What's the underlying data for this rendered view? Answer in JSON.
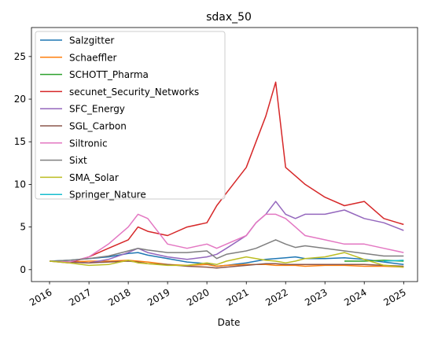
{
  "chart_data": {
    "type": "line",
    "title": "sdax_50",
    "xlabel": "Date",
    "ylabel": "",
    "x": [
      "2016-01-01",
      "2016-07-01",
      "2017-01-01",
      "2017-07-01",
      "2018-01-01",
      "2018-04-01",
      "2018-07-01",
      "2019-01-01",
      "2019-07-01",
      "2020-01-01",
      "2020-04-01",
      "2020-07-01",
      "2021-01-01",
      "2021-04-01",
      "2021-07-01",
      "2021-10-01",
      "2022-01-01",
      "2022-04-01",
      "2022-07-01",
      "2023-01-01",
      "2023-07-01",
      "2024-01-01",
      "2024-07-01",
      "2025-01-01"
    ],
    "xlim": [
      "2015-07-17",
      "2025-05-10"
    ],
    "ylim": [
      -1.4,
      28.4
    ],
    "x_ticks": [
      "2016",
      "2017",
      "2018",
      "2019",
      "2020",
      "2021",
      "2022",
      "2023",
      "2024",
      "2025"
    ],
    "y_ticks": [
      0,
      5,
      10,
      15,
      20,
      25
    ],
    "grid": false,
    "legend_position": "top-left",
    "series": [
      {
        "name": "Salzgitter",
        "color": "#1f77b4",
        "values": [
          1.0,
          1.1,
          1.3,
          1.5,
          1.9,
          2.0,
          1.7,
          1.3,
          0.9,
          0.7,
          0.4,
          0.5,
          0.8,
          1.0,
          1.2,
          1.3,
          1.4,
          1.5,
          1.3,
          1.3,
          1.4,
          1.2,
          0.9,
          0.6
        ]
      },
      {
        "name": "Schaeffler",
        "color": "#ff7f0e",
        "values": [
          1.0,
          0.9,
          1.0,
          1.0,
          1.1,
          1.0,
          0.9,
          0.6,
          0.5,
          0.6,
          0.4,
          0.5,
          0.6,
          0.6,
          0.6,
          0.5,
          0.5,
          0.5,
          0.4,
          0.5,
          0.5,
          0.4,
          0.4,
          0.3
        ]
      },
      {
        "name": "SCHOTT_Pharma",
        "color": "#2ca02c",
        "values": [
          null,
          null,
          null,
          null,
          null,
          null,
          null,
          null,
          null,
          null,
          null,
          null,
          null,
          null,
          null,
          null,
          null,
          null,
          null,
          null,
          1.0,
          1.0,
          1.1,
          1.0
        ]
      },
      {
        "name": "secunet_Security_Networks",
        "color": "#d62728",
        "values": [
          1.0,
          0.8,
          1.5,
          2.5,
          3.5,
          5.0,
          4.5,
          4.0,
          5.0,
          5.5,
          7.5,
          9.0,
          12.0,
          15.0,
          18.0,
          22.0,
          12.0,
          11.0,
          10.0,
          8.5,
          7.5,
          8.0,
          6.0,
          5.3
        ]
      },
      {
        "name": "SFC_Energy",
        "color": "#9467bd",
        "values": [
          1.0,
          0.9,
          0.8,
          1.2,
          2.0,
          2.5,
          2.0,
          1.5,
          1.2,
          1.5,
          1.8,
          2.5,
          4.0,
          5.5,
          6.5,
          8.0,
          6.5,
          6.0,
          6.5,
          6.5,
          7.0,
          6.0,
          5.5,
          4.6
        ]
      },
      {
        "name": "SGL_Carbon",
        "color": "#8c564b",
        "values": [
          1.0,
          0.9,
          0.8,
          0.9,
          1.0,
          0.9,
          0.7,
          0.6,
          0.4,
          0.3,
          0.2,
          0.3,
          0.5,
          0.6,
          0.7,
          0.7,
          0.6,
          0.6,
          0.6,
          0.6,
          0.6,
          0.6,
          0.5,
          0.4
        ]
      },
      {
        "name": "Siltronic",
        "color": "#e377c2",
        "values": [
          1.0,
          0.9,
          1.5,
          3.0,
          5.0,
          6.5,
          6.0,
          3.0,
          2.5,
          3.0,
          2.5,
          3.0,
          4.0,
          5.5,
          6.5,
          6.5,
          6.0,
          5.0,
          4.0,
          3.5,
          3.0,
          3.0,
          2.5,
          2.0
        ]
      },
      {
        "name": "Sixt",
        "color": "#7f7f7f",
        "values": [
          1.0,
          1.1,
          1.3,
          1.6,
          2.2,
          2.5,
          2.3,
          2.0,
          2.0,
          2.2,
          1.3,
          1.8,
          2.2,
          2.5,
          3.0,
          3.5,
          3.0,
          2.6,
          2.8,
          2.5,
          2.2,
          1.9,
          1.6,
          1.6
        ]
      },
      {
        "name": "SMA_Solar",
        "color": "#bcbd22",
        "values": [
          1.0,
          0.8,
          0.5,
          0.6,
          1.1,
          0.8,
          0.7,
          0.5,
          0.5,
          0.8,
          0.6,
          1.0,
          1.5,
          1.3,
          1.1,
          1.0,
          0.8,
          1.0,
          1.3,
          1.5,
          2.0,
          1.2,
          0.5,
          0.3
        ]
      },
      {
        "name": "Springer_Nature",
        "color": "#17becf",
        "values": [
          null,
          null,
          null,
          null,
          null,
          null,
          null,
          null,
          null,
          null,
          null,
          null,
          null,
          null,
          null,
          null,
          null,
          null,
          null,
          null,
          null,
          null,
          1.0,
          1.1
        ]
      }
    ]
  }
}
